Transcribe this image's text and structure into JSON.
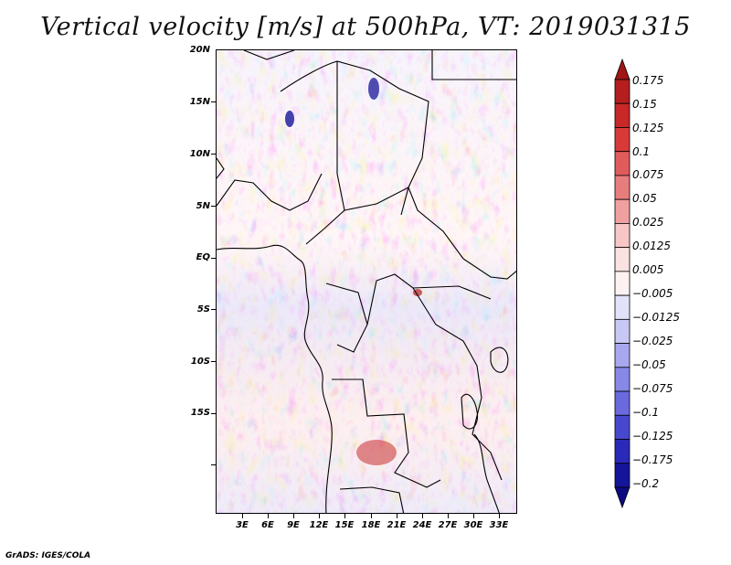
{
  "title": "Vertical velocity [m/s] at 500hPa, VT: 2019031315",
  "footer": "GrADS: IGES/COLA",
  "map": {
    "lat_labels": [
      "20N",
      "15N",
      "10N",
      "5N",
      "EQ",
      "5S",
      "10S",
      "15S"
    ],
    "lon_labels": [
      "3E",
      "6E",
      "9E",
      "12E",
      "15E",
      "18E",
      "21E",
      "24E",
      "27E",
      "30E",
      "33E"
    ]
  },
  "legend": {
    "levels": [
      "0.175",
      "0.15",
      "0.125",
      "0.1",
      "0.075",
      "0.05",
      "0.025",
      "0.0125",
      "0.005",
      "−0.005",
      "−0.0125",
      "−0.025",
      "−0.05",
      "−0.075",
      "−0.1",
      "−0.125",
      "−0.175",
      "−0.2"
    ],
    "colors": [
      "#a01616",
      "#b41e1e",
      "#c82828",
      "#d83a3a",
      "#e05c5c",
      "#e87d7d",
      "#f0a0a0",
      "#f7c6c6",
      "#fbe2e2",
      "#fdf2f2",
      "#e2e2fa",
      "#c8c8f5",
      "#a8a8ee",
      "#8888e6",
      "#6a6add",
      "#4848cf",
      "#2a2ab8",
      "#15159a",
      "#0c0c80"
    ]
  }
}
